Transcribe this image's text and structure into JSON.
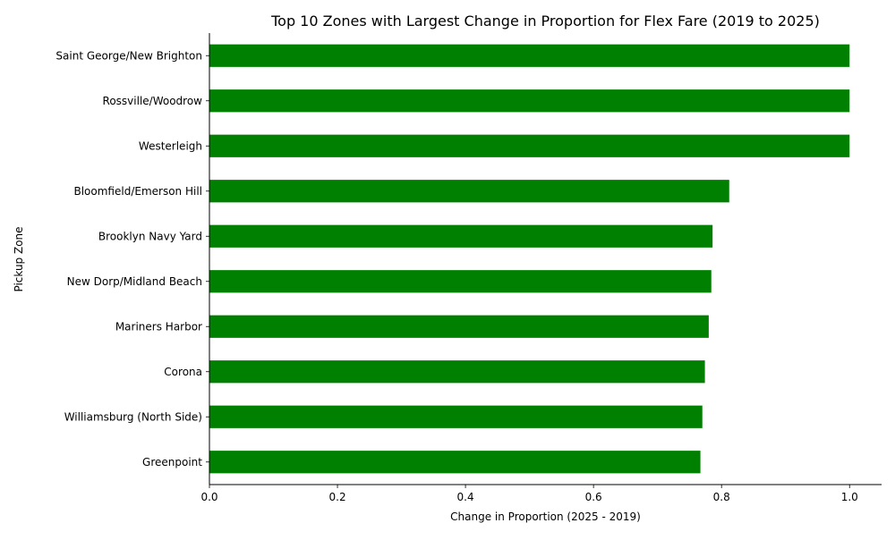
{
  "chart_data": {
    "type": "bar",
    "orientation": "horizontal",
    "title": "Top 10 Zones with Largest Change in Proportion for Flex Fare (2019 to 2025)",
    "xlabel": "Change in Proportion (2025 - 2019)",
    "ylabel": "Pickup Zone",
    "xlim": [
      0,
      1.05
    ],
    "xticks": [
      0.0,
      0.2,
      0.4,
      0.6,
      0.8,
      1.0
    ],
    "xtick_labels": [
      "0.0",
      "0.2",
      "0.4",
      "0.6",
      "0.8",
      "1.0"
    ],
    "grid": false,
    "legend": "none",
    "bar_color": "#008000",
    "categories": [
      "Saint George/New Brighton",
      "Rossville/Woodrow",
      "Westerleigh",
      "Bloomfield/Emerson Hill",
      "Brooklyn Navy Yard",
      "New Dorp/Midland Beach",
      "Mariners Harbor",
      "Corona",
      "Williamsburg (North Side)",
      "Greenpoint"
    ],
    "values": [
      1.0,
      1.0,
      1.0,
      0.812,
      0.786,
      0.784,
      0.78,
      0.774,
      0.77,
      0.767
    ]
  }
}
